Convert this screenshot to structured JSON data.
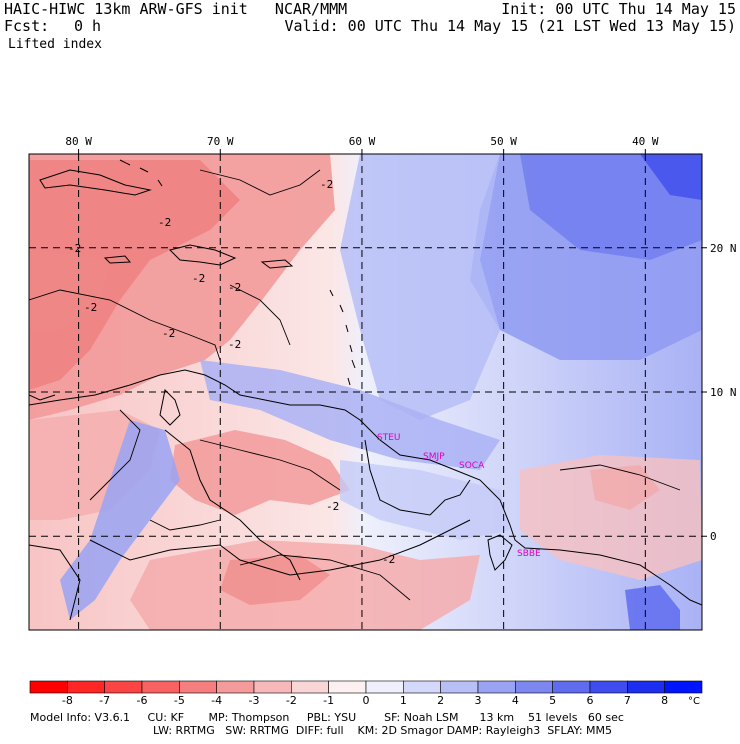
{
  "header": {
    "model_line": "HAIC-HIWC 13km ARW-GFS init   NCAR/MMM",
    "fcst_label": "Fcst:",
    "fcst_value": "0 h",
    "field": "Lifted index",
    "init": "Init: 00 UTC Thu 14 May 15",
    "valid": "Valid: 00 UTC Thu 14 May 15 (21 LST Wed 13 May 15)"
  },
  "map": {
    "lon_labels": [
      "80 W",
      "70 W",
      "60 W",
      "50 W",
      "40 W"
    ],
    "lon_values": [
      -80,
      -70,
      -60,
      -50,
      -40
    ],
    "lat_labels": [
      "20 N",
      "10 N",
      "0"
    ],
    "lat_values": [
      20,
      10,
      0
    ],
    "lon_range": [
      -83.5,
      -36
    ],
    "lat_range": [
      -6.5,
      26.5
    ],
    "contour_labels": [
      "-2",
      "-2",
      "-2",
      "-2",
      "-2",
      "-2",
      "-2",
      "-2",
      "-2",
      "-2"
    ],
    "stations": [
      "STEU",
      "SMJP",
      "SOCA",
      "SBBE"
    ],
    "station_color": "#e000c0",
    "neg_color": "#f26a6a",
    "pos_color": "#5d6ef0"
  },
  "colorbar": {
    "ticks": [
      "-8",
      "-7",
      "-6",
      "-5",
      "-4",
      "-3",
      "-2",
      "-1",
      "0",
      "1",
      "2",
      "3",
      "4",
      "5",
      "6",
      "7",
      "8"
    ],
    "unit": "°C",
    "colors": [
      "#ff0000",
      "#ff2626",
      "#fb4444",
      "#f86262",
      "#f67e7e",
      "#f59a9a",
      "#f6b8b8",
      "#f9d6d6",
      "#fdf0f0",
      "#f0f0fd",
      "#d4d8fa",
      "#b8bef6",
      "#9aa3f3",
      "#7d87f0",
      "#5f6cee",
      "#3f4dee",
      "#1c2ef0",
      "#0015ff"
    ]
  },
  "model_info": {
    "line1": "Model Info: V3.6.1     CU: KF       MP: Thompson     PBL: YSU        SF: Noah LSM      13 km    51 levels   60 sec",
    "line2": "LW: RRTMG   SW: RRTMG  DIFF: full    KM: 2D Smagor DAMP: Rayleigh3  SFLAY: MM5"
  }
}
